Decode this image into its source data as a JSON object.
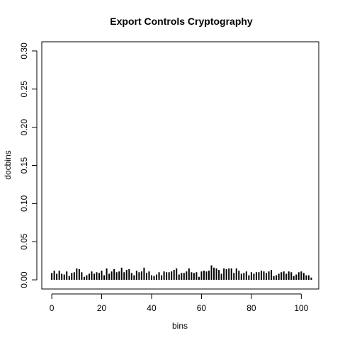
{
  "chart_data": {
    "type": "bar",
    "title": "Export Controls Cryptography",
    "xlabel": "bins",
    "ylabel": "docbins",
    "xlim": [
      -4,
      107
    ],
    "ylim": [
      -0.012,
      0.312
    ],
    "x_ticks": [
      "0",
      "20",
      "40",
      "60",
      "80",
      "100"
    ],
    "y_ticks": [
      "0.00",
      "0.05",
      "0.10",
      "0.15",
      "0.20",
      "0.25",
      "0.30"
    ],
    "grid": false,
    "legend": "none",
    "bar_color": "#000000",
    "x": [
      0,
      1,
      2,
      3,
      4,
      5,
      6,
      7,
      8,
      9,
      10,
      11,
      12,
      13,
      14,
      15,
      16,
      17,
      18,
      19,
      20,
      21,
      22,
      23,
      24,
      25,
      26,
      27,
      28,
      29,
      30,
      31,
      32,
      33,
      34,
      35,
      36,
      37,
      38,
      39,
      40,
      41,
      42,
      43,
      44,
      45,
      46,
      47,
      48,
      49,
      50,
      51,
      52,
      53,
      54,
      55,
      56,
      57,
      58,
      59,
      60,
      61,
      62,
      63,
      64,
      65,
      66,
      67,
      68,
      69,
      70,
      71,
      72,
      73,
      74,
      75,
      76,
      77,
      78,
      79,
      80,
      81,
      82,
      83,
      84,
      85,
      86,
      87,
      88,
      89,
      90,
      91,
      92,
      93,
      94,
      95,
      96,
      97,
      98,
      99,
      100,
      101,
      102,
      103,
      104
    ],
    "values": [
      0.009,
      0.012,
      0.008,
      0.012,
      0.008,
      0.007,
      0.011,
      0.005,
      0.009,
      0.01,
      0.015,
      0.014,
      0.01,
      0.004,
      0.006,
      0.008,
      0.011,
      0.008,
      0.01,
      0.009,
      0.012,
      0.006,
      0.015,
      0.008,
      0.011,
      0.014,
      0.01,
      0.011,
      0.016,
      0.01,
      0.013,
      0.014,
      0.009,
      0.006,
      0.012,
      0.01,
      0.011,
      0.016,
      0.009,
      0.011,
      0.006,
      0.005,
      0.007,
      0.01,
      0.006,
      0.011,
      0.01,
      0.01,
      0.011,
      0.013,
      0.015,
      0.007,
      0.009,
      0.009,
      0.011,
      0.015,
      0.01,
      0.009,
      0.01,
      0.004,
      0.011,
      0.012,
      0.011,
      0.012,
      0.019,
      0.016,
      0.015,
      0.013,
      0.008,
      0.015,
      0.014,
      0.015,
      0.015,
      0.009,
      0.015,
      0.012,
      0.008,
      0.009,
      0.011,
      0.006,
      0.01,
      0.008,
      0.01,
      0.01,
      0.012,
      0.011,
      0.009,
      0.011,
      0.013,
      0.005,
      0.006,
      0.008,
      0.01,
      0.011,
      0.008,
      0.011,
      0.01,
      0.005,
      0.007,
      0.01,
      0.011,
      0.009,
      0.006,
      0.006,
      0.003
    ]
  }
}
